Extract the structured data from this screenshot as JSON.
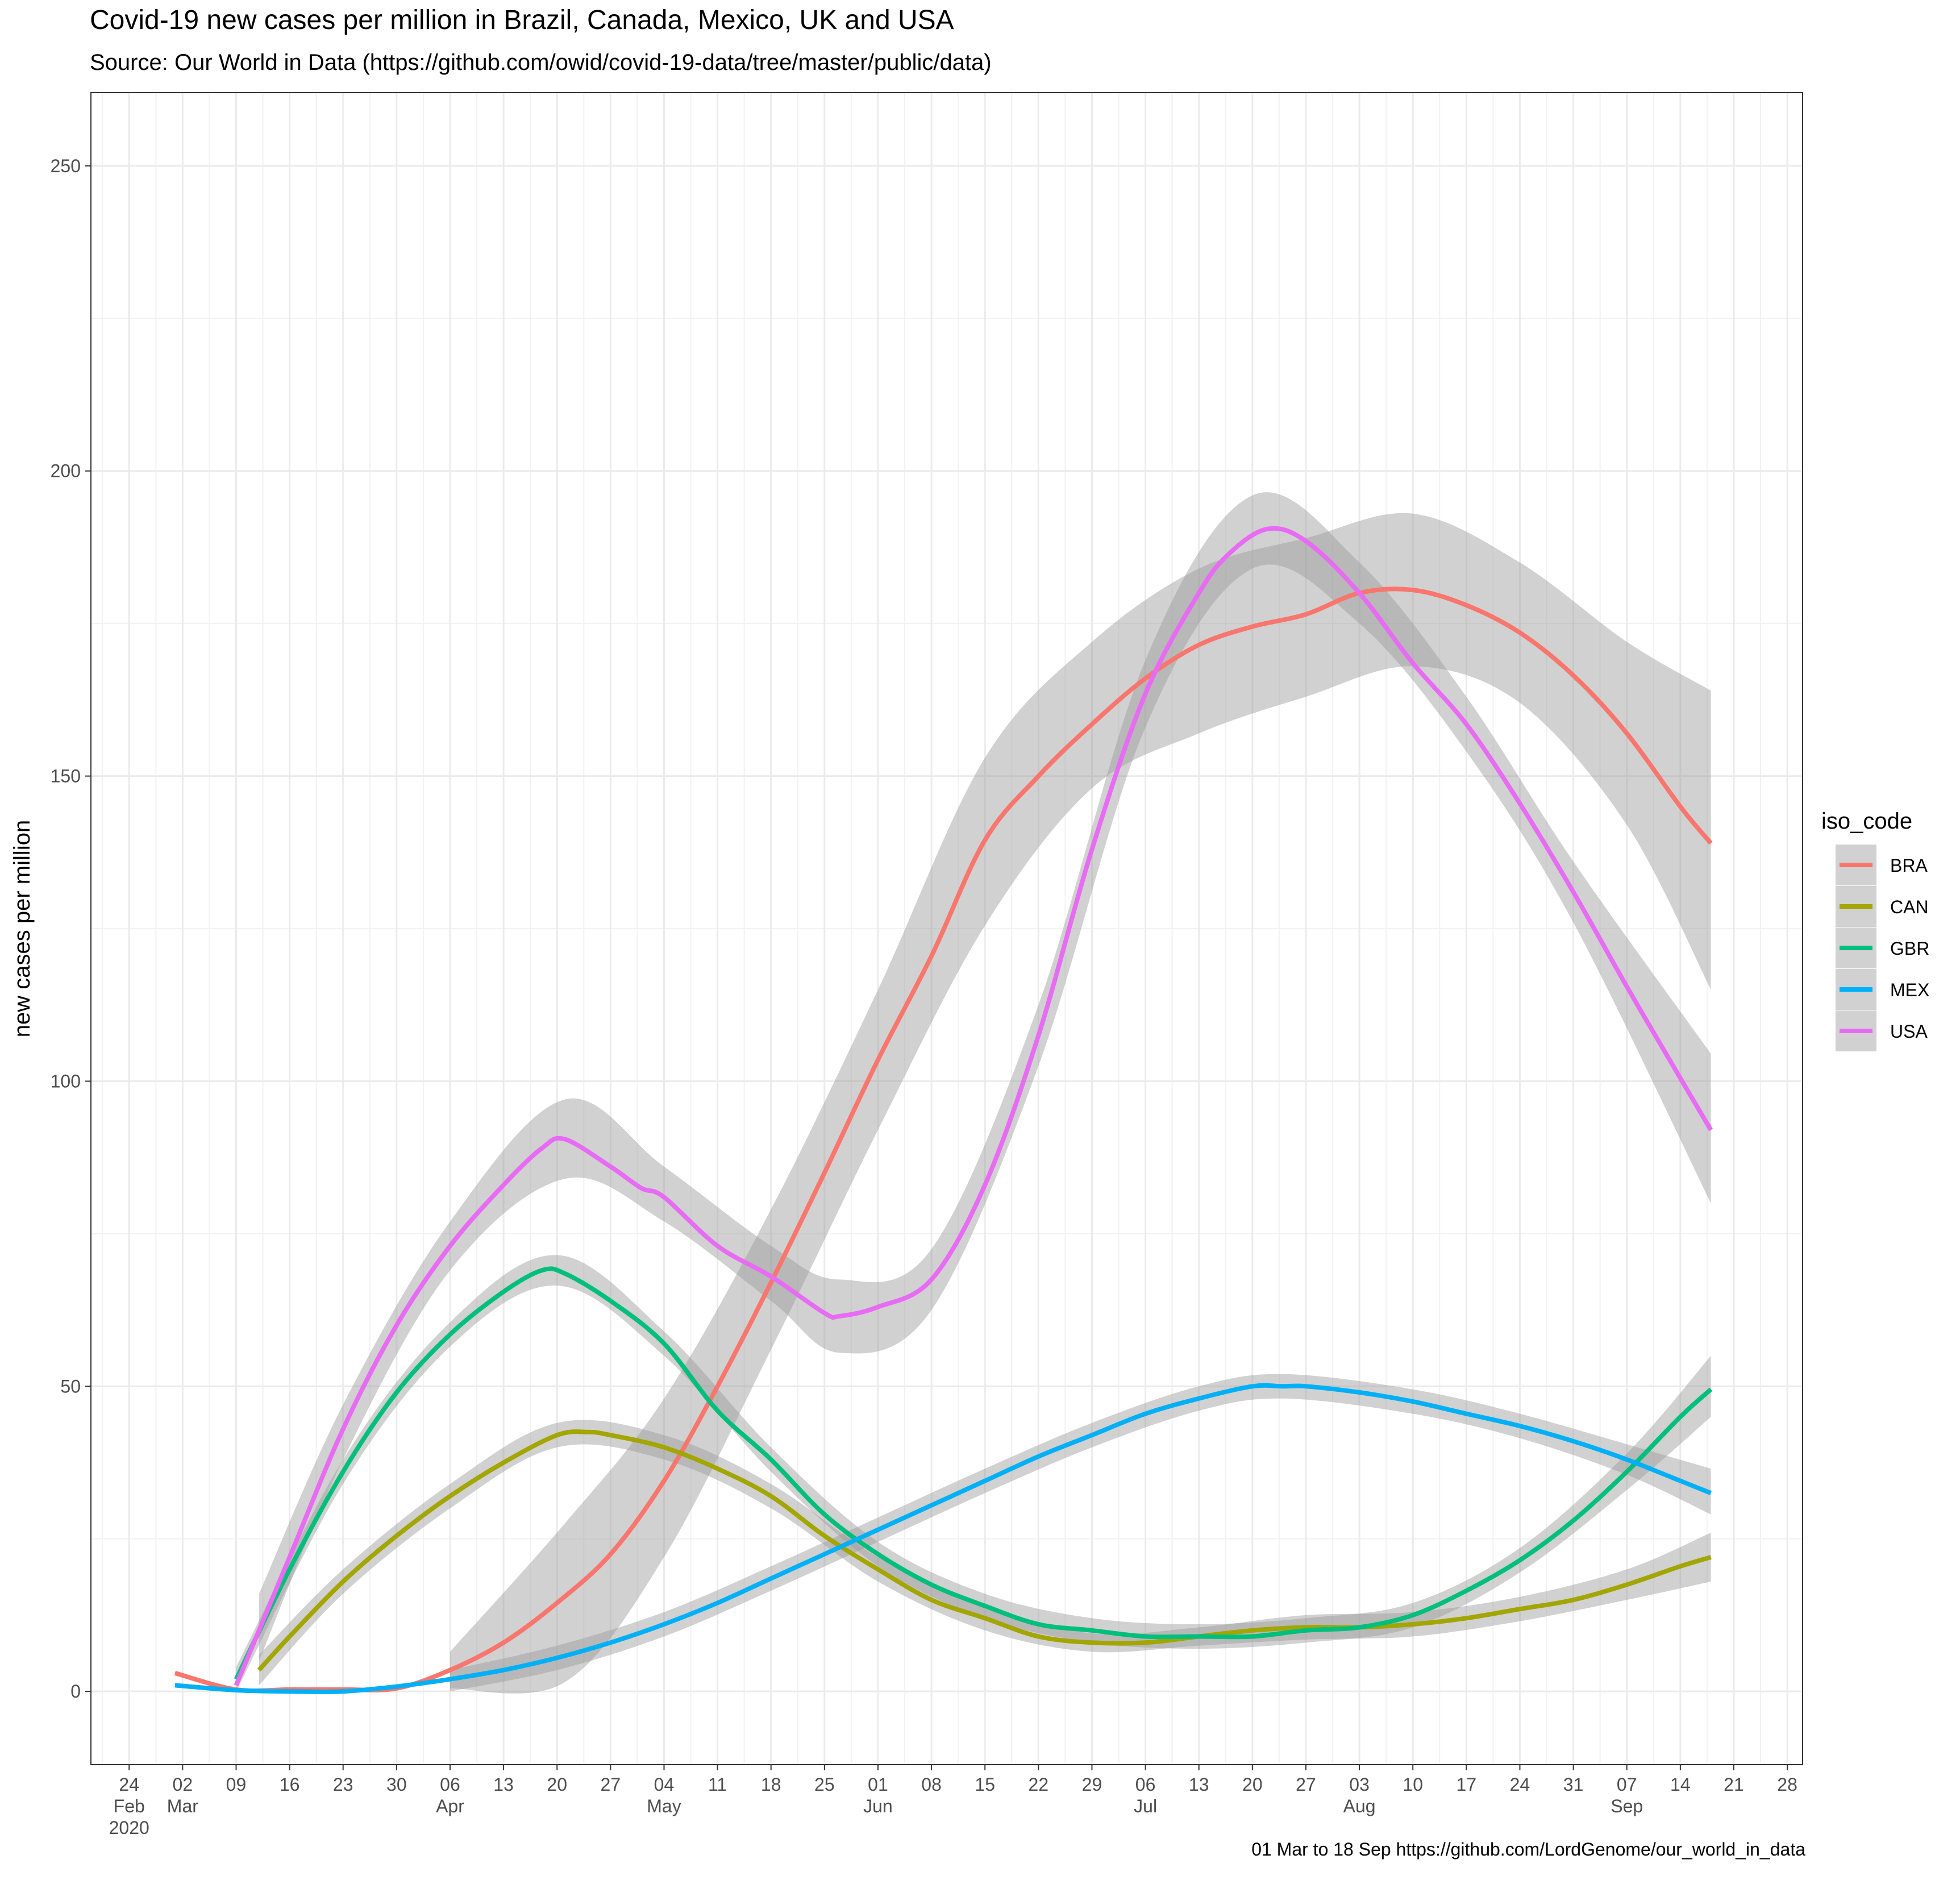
{
  "title": "Covid-19 new cases per million in Brazil, Canada, Mexico, UK and USA",
  "subtitle": "Source: Our World in Data  (https://github.com/owid/covid-19-data/tree/master/public/data)",
  "caption": "01 Mar to 18 Sep https://github.com/LordGenome/our_world_in_data",
  "chart_data": {
    "type": "line",
    "title": "Covid-19 new cases per million in Brazil, Canada, Mexico, UK and USA",
    "xlabel": "",
    "ylabel": "new cases per million",
    "xlim": [
      "2020-02-19",
      "2020-09-30"
    ],
    "ylim": [
      -12,
      262
    ],
    "y_ticks": [
      0,
      50,
      100,
      150,
      200,
      250
    ],
    "x_ticks": [
      {
        "date": "2020-02-24",
        "label": "24",
        "sub": "Feb",
        "sub2": "2020"
      },
      {
        "date": "2020-03-02",
        "label": "02",
        "sub": "Mar"
      },
      {
        "date": "2020-03-09",
        "label": "09"
      },
      {
        "date": "2020-03-16",
        "label": "16"
      },
      {
        "date": "2020-03-23",
        "label": "23"
      },
      {
        "date": "2020-03-30",
        "label": "30"
      },
      {
        "date": "2020-04-06",
        "label": "06",
        "sub": "Apr"
      },
      {
        "date": "2020-04-13",
        "label": "13"
      },
      {
        "date": "2020-04-20",
        "label": "20"
      },
      {
        "date": "2020-04-27",
        "label": "27"
      },
      {
        "date": "2020-05-04",
        "label": "04",
        "sub": "May"
      },
      {
        "date": "2020-05-11",
        "label": "11"
      },
      {
        "date": "2020-05-18",
        "label": "18"
      },
      {
        "date": "2020-05-25",
        "label": "25"
      },
      {
        "date": "2020-06-01",
        "label": "01",
        "sub": "Jun"
      },
      {
        "date": "2020-06-08",
        "label": "08"
      },
      {
        "date": "2020-06-15",
        "label": "15"
      },
      {
        "date": "2020-06-22",
        "label": "22"
      },
      {
        "date": "2020-06-29",
        "label": "29"
      },
      {
        "date": "2020-07-06",
        "label": "06",
        "sub": "Jul"
      },
      {
        "date": "2020-07-13",
        "label": "13"
      },
      {
        "date": "2020-07-20",
        "label": "20"
      },
      {
        "date": "2020-07-27",
        "label": "27"
      },
      {
        "date": "2020-08-03",
        "label": "03",
        "sub": "Aug"
      },
      {
        "date": "2020-08-10",
        "label": "10"
      },
      {
        "date": "2020-08-17",
        "label": "17"
      },
      {
        "date": "2020-08-24",
        "label": "24"
      },
      {
        "date": "2020-08-31",
        "label": "31"
      },
      {
        "date": "2020-09-07",
        "label": "07",
        "sub": "Sep"
      },
      {
        "date": "2020-09-14",
        "label": "14"
      },
      {
        "date": "2020-09-21",
        "label": "21"
      },
      {
        "date": "2020-09-28",
        "label": "28"
      }
    ],
    "grid": true,
    "legend": {
      "title": "iso_code",
      "position": "right"
    },
    "band_color": "#999999",
    "series": [
      {
        "name": "BRA",
        "color": "#F8766D",
        "x": [
          "2020-03-01",
          "2020-03-09",
          "2020-03-16",
          "2020-03-23",
          "2020-03-30",
          "2020-04-06",
          "2020-04-13",
          "2020-04-20",
          "2020-04-27",
          "2020-05-04",
          "2020-05-11",
          "2020-05-18",
          "2020-05-25",
          "2020-06-01",
          "2020-06-08",
          "2020-06-15",
          "2020-06-22",
          "2020-06-29",
          "2020-07-06",
          "2020-07-13",
          "2020-07-20",
          "2020-07-27",
          "2020-08-03",
          "2020-08-10",
          "2020-08-17",
          "2020-08-24",
          "2020-08-31",
          "2020-09-07",
          "2020-09-14",
          "2020-09-18"
        ],
        "y": [
          3,
          0.3,
          0.3,
          0.3,
          0.5,
          3.5,
          8,
          14.5,
          22.5,
          34.5,
          50,
          67,
          85,
          103.5,
          120.5,
          139.5,
          150,
          158.5,
          166,
          171.5,
          174.5,
          176.5,
          180,
          180.5,
          178,
          173.5,
          166.5,
          157,
          145,
          139
        ],
        "band": [
          {
            "x": "2020-04-06",
            "lo": 0.5,
            "hi": 6.5
          },
          {
            "x": "2020-04-21",
            "lo": 1.5,
            "hi": 27.5
          },
          {
            "x": "2020-05-04",
            "lo": 22,
            "hi": 48
          },
          {
            "x": "2020-05-18",
            "lo": 56,
            "hi": 79
          },
          {
            "x": "2020-06-01",
            "lo": 92,
            "hi": 115
          },
          {
            "x": "2020-06-15",
            "lo": 125.5,
            "hi": 153
          },
          {
            "x": "2020-06-29",
            "lo": 148,
            "hi": 172
          },
          {
            "x": "2020-07-13",
            "lo": 157,
            "hi": 184
          },
          {
            "x": "2020-07-27",
            "lo": 163,
            "hi": 189
          },
          {
            "x": "2020-08-10",
            "lo": 168,
            "hi": 193
          },
          {
            "x": "2020-08-24",
            "lo": 162,
            "hi": 185
          },
          {
            "x": "2020-09-07",
            "lo": 142,
            "hi": 172
          },
          {
            "x": "2020-09-18",
            "lo": 115,
            "hi": 164
          }
        ]
      },
      {
        "name": "CAN",
        "color": "#A3A500",
        "x": [
          "2020-03-12",
          "2020-03-16",
          "2020-03-23",
          "2020-03-30",
          "2020-04-06",
          "2020-04-13",
          "2020-04-20",
          "2020-04-24",
          "2020-04-27",
          "2020-05-04",
          "2020-05-11",
          "2020-05-18",
          "2020-05-25",
          "2020-06-01",
          "2020-06-08",
          "2020-06-15",
          "2020-06-22",
          "2020-06-29",
          "2020-07-06",
          "2020-07-13",
          "2020-07-20",
          "2020-07-27",
          "2020-08-03",
          "2020-08-10",
          "2020-08-17",
          "2020-08-24",
          "2020-08-31",
          "2020-09-07",
          "2020-09-14",
          "2020-09-18"
        ],
        "y": [
          3.5,
          9,
          18,
          25.5,
          32,
          37.5,
          42,
          42.5,
          42,
          40,
          36.5,
          32,
          25.5,
          20,
          15,
          12,
          9,
          8,
          8,
          9,
          10,
          10.5,
          10.5,
          11,
          12,
          13.5,
          15,
          17.5,
          20.5,
          22
        ],
        "band": [
          {
            "x": "2020-03-12",
            "lo": 1,
            "hi": 6
          },
          {
            "x": "2020-03-23",
            "lo": 16,
            "hi": 20
          },
          {
            "x": "2020-04-06",
            "lo": 30,
            "hi": 34
          },
          {
            "x": "2020-04-20",
            "lo": 40,
            "hi": 44
          },
          {
            "x": "2020-05-04",
            "lo": 38,
            "hi": 42
          },
          {
            "x": "2020-05-18",
            "lo": 30,
            "hi": 34
          },
          {
            "x": "2020-06-01",
            "lo": 18,
            "hi": 22
          },
          {
            "x": "2020-06-15",
            "lo": 10,
            "hi": 14
          },
          {
            "x": "2020-06-29",
            "lo": 6.5,
            "hi": 9.5
          },
          {
            "x": "2020-07-13",
            "lo": 7.5,
            "hi": 10.5
          },
          {
            "x": "2020-07-27",
            "lo": 8.5,
            "hi": 12.5
          },
          {
            "x": "2020-08-10",
            "lo": 9,
            "hi": 13
          },
          {
            "x": "2020-08-24",
            "lo": 11.5,
            "hi": 15.5
          },
          {
            "x": "2020-09-07",
            "lo": 15,
            "hi": 20
          },
          {
            "x": "2020-09-18",
            "lo": 18,
            "hi": 26
          }
        ]
      },
      {
        "name": "GBR",
        "color": "#00BF7D",
        "x": [
          "2020-03-09",
          "2020-03-16",
          "2020-03-23",
          "2020-03-30",
          "2020-04-06",
          "2020-04-13",
          "2020-04-18",
          "2020-04-21",
          "2020-04-27",
          "2020-05-04",
          "2020-05-11",
          "2020-05-18",
          "2020-05-25",
          "2020-06-01",
          "2020-06-08",
          "2020-06-15",
          "2020-06-22",
          "2020-06-29",
          "2020-07-06",
          "2020-07-13",
          "2020-07-20",
          "2020-07-27",
          "2020-08-03",
          "2020-08-10",
          "2020-08-17",
          "2020-08-24",
          "2020-08-31",
          "2020-09-07",
          "2020-09-14",
          "2020-09-18"
        ],
        "y": [
          2,
          20,
          36,
          49,
          58.5,
          65.5,
          69,
          68.5,
          64,
          57,
          46,
          38,
          29,
          22.5,
          17.5,
          14,
          11,
          10,
          9,
          9,
          9,
          10,
          10.5,
          12.5,
          16.5,
          21.5,
          28,
          36,
          45,
          49.5
        ],
        "band": [
          {
            "x": "2020-03-09",
            "lo": 0,
            "hi": 4
          },
          {
            "x": "2020-03-23",
            "lo": 34,
            "hi": 38
          },
          {
            "x": "2020-04-06",
            "lo": 56.5,
            "hi": 60.5
          },
          {
            "x": "2020-04-20",
            "lo": 66.5,
            "hi": 71.5
          },
          {
            "x": "2020-05-04",
            "lo": 55,
            "hi": 59
          },
          {
            "x": "2020-05-18",
            "lo": 36,
            "hi": 40
          },
          {
            "x": "2020-06-01",
            "lo": 20.5,
            "hi": 24.5
          },
          {
            "x": "2020-06-15",
            "lo": 12,
            "hi": 16
          },
          {
            "x": "2020-06-29",
            "lo": 8,
            "hi": 12
          },
          {
            "x": "2020-07-13",
            "lo": 7,
            "hi": 11
          },
          {
            "x": "2020-07-27",
            "lo": 8,
            "hi": 12
          },
          {
            "x": "2020-08-10",
            "lo": 10.5,
            "hi": 14.5
          },
          {
            "x": "2020-08-24",
            "lo": 19.5,
            "hi": 23.5
          },
          {
            "x": "2020-09-07",
            "lo": 33,
            "hi": 39
          },
          {
            "x": "2020-09-18",
            "lo": 45,
            "hi": 55
          }
        ]
      },
      {
        "name": "MEX",
        "color": "#00B0F6",
        "x": [
          "2020-03-01",
          "2020-03-09",
          "2020-03-16",
          "2020-03-23",
          "2020-03-30",
          "2020-04-06",
          "2020-04-13",
          "2020-04-20",
          "2020-04-27",
          "2020-05-04",
          "2020-05-11",
          "2020-05-18",
          "2020-05-25",
          "2020-06-01",
          "2020-06-08",
          "2020-06-15",
          "2020-06-22",
          "2020-06-29",
          "2020-07-06",
          "2020-07-13",
          "2020-07-20",
          "2020-07-24",
          "2020-07-27",
          "2020-08-03",
          "2020-08-10",
          "2020-08-17",
          "2020-08-24",
          "2020-08-31",
          "2020-09-07",
          "2020-09-14",
          "2020-09-18"
        ],
        "y": [
          1,
          0.2,
          0,
          0,
          0.8,
          2,
          3.5,
          5.5,
          8,
          11,
          14.5,
          18.5,
          22.5,
          26.5,
          30.5,
          34.5,
          38.5,
          42,
          45.5,
          48,
          50,
          50,
          50,
          49,
          47.5,
          45.5,
          43.5,
          41,
          38,
          34.5,
          32.5
        ],
        "band": [
          {
            "x": "2020-04-06",
            "lo": 0,
            "hi": 3.5
          },
          {
            "x": "2020-04-20",
            "lo": 3.5,
            "hi": 7.5
          },
          {
            "x": "2020-05-04",
            "lo": 9,
            "hi": 13
          },
          {
            "x": "2020-05-18",
            "lo": 16.5,
            "hi": 20.5
          },
          {
            "x": "2020-06-01",
            "lo": 24.5,
            "hi": 28.5
          },
          {
            "x": "2020-06-15",
            "lo": 32.5,
            "hi": 36.5
          },
          {
            "x": "2020-06-29",
            "lo": 40,
            "hi": 44
          },
          {
            "x": "2020-07-13",
            "lo": 46,
            "hi": 50
          },
          {
            "x": "2020-07-24",
            "lo": 48,
            "hi": 52
          },
          {
            "x": "2020-08-10",
            "lo": 45.5,
            "hi": 49.5
          },
          {
            "x": "2020-08-24",
            "lo": 41.5,
            "hi": 45.5
          },
          {
            "x": "2020-09-07",
            "lo": 35.5,
            "hi": 40.5
          },
          {
            "x": "2020-09-18",
            "lo": 29,
            "hi": 36.5
          }
        ]
      },
      {
        "name": "USA",
        "color": "#E76BF3",
        "x": [
          "2020-03-09",
          "2020-03-16",
          "2020-03-23",
          "2020-03-30",
          "2020-04-06",
          "2020-04-13",
          "2020-04-18",
          "2020-04-21",
          "2020-04-27",
          "2020-05-01",
          "2020-05-04",
          "2020-05-11",
          "2020-05-18",
          "2020-05-25",
          "2020-05-27",
          "2020-06-01",
          "2020-06-08",
          "2020-06-15",
          "2020-06-22",
          "2020-06-29",
          "2020-07-06",
          "2020-07-13",
          "2020-07-17",
          "2020-07-22",
          "2020-07-27",
          "2020-08-03",
          "2020-08-10",
          "2020-08-17",
          "2020-08-24",
          "2020-08-31",
          "2020-09-07",
          "2020-09-14",
          "2020-09-18"
        ],
        "y": [
          1,
          22,
          43,
          60,
          73,
          83,
          89,
          90.5,
          86,
          82.5,
          81,
          73,
          68,
          62,
          61.5,
          63,
          67.5,
          83,
          107.5,
          138,
          163.5,
          180,
          186.5,
          190.5,
          188.5,
          180,
          168.5,
          158.5,
          145.5,
          131,
          115.5,
          100.5,
          92
        ],
        "band": [
          {
            "x": "2020-03-12",
            "lo": 5,
            "hi": 16
          },
          {
            "x": "2020-03-23",
            "lo": 38,
            "hi": 47
          },
          {
            "x": "2020-04-06",
            "lo": 69,
            "hi": 77
          },
          {
            "x": "2020-04-21",
            "lo": 84,
            "hi": 97
          },
          {
            "x": "2020-05-04",
            "lo": 77,
            "hi": 86
          },
          {
            "x": "2020-05-18",
            "lo": 64,
            "hi": 73
          },
          {
            "x": "2020-05-27",
            "lo": 55.5,
            "hi": 67.5
          },
          {
            "x": "2020-06-08",
            "lo": 62.5,
            "hi": 72.5
          },
          {
            "x": "2020-06-22",
            "lo": 102.5,
            "hi": 112.5
          },
          {
            "x": "2020-07-06",
            "lo": 158,
            "hi": 169
          },
          {
            "x": "2020-07-20",
            "lo": 184,
            "hi": 196
          },
          {
            "x": "2020-08-03",
            "lo": 175,
            "hi": 185
          },
          {
            "x": "2020-08-17",
            "lo": 154,
            "hi": 163
          },
          {
            "x": "2020-08-31",
            "lo": 126,
            "hi": 136
          },
          {
            "x": "2020-09-18",
            "lo": 80,
            "hi": 104.5
          }
        ]
      }
    ]
  }
}
